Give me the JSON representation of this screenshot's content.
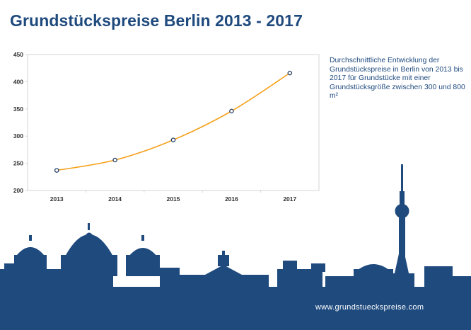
{
  "title": "Grundstückspreise Berlin 2013 - 2017",
  "description": "Durchschnittliche Entwicklung der Grundstückspreise in Berlin von 2013 bis 2017 für Grundstücke mit einer Grundstücksgröße zwischen 300 und 800 m²",
  "footer": {
    "url": "www.grundstueckspreise.com"
  },
  "colors": {
    "title": "#1f4a7e",
    "line": "#f5a11c",
    "skyline": "#1f4a7e",
    "axis": "#d0d0d0"
  },
  "chart_data": {
    "type": "line",
    "title": "",
    "xlabel": "",
    "ylabel": "",
    "categories": [
      "2013",
      "2014",
      "2015",
      "2016",
      "2017"
    ],
    "series": [
      {
        "values": [
          237,
          256,
          293,
          346,
          416
        ]
      }
    ],
    "ylim": [
      200,
      450
    ],
    "yticks": [
      "200",
      "250",
      "300",
      "350",
      "400",
      "450"
    ],
    "grid": false,
    "markers": "hollow-circle"
  }
}
